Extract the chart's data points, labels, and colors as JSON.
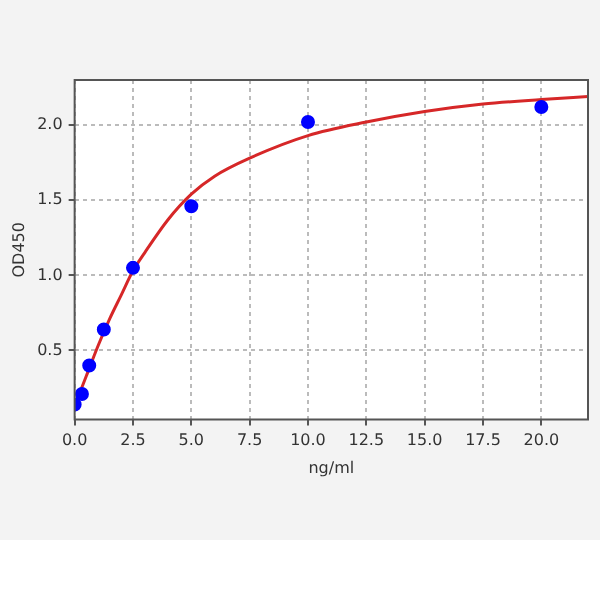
{
  "chart_data": {
    "type": "scatter",
    "xlabel": "ng/ml",
    "ylabel": "OD450",
    "series": [
      {
        "color": "#0000ff",
        "x": [
          0,
          0.3125,
          0.625,
          1.25,
          2.5,
          5,
          10,
          20
        ],
        "values": [
          0.14,
          0.21,
          0.4,
          0.64,
          1.05,
          1.46,
          2.02,
          2.12
        ],
        "marker": "circle"
      },
      {
        "type": "line",
        "color": "#d62728",
        "x": [
          0,
          0.5,
          1,
          1.5,
          2,
          2.5,
          3,
          4,
          5,
          6,
          7.5,
          10,
          12.5,
          15,
          17.5,
          20,
          22
        ],
        "values": [
          0.13,
          0.33,
          0.53,
          0.71,
          0.87,
          1.03,
          1.15,
          1.37,
          1.54,
          1.66,
          1.78,
          1.93,
          2.02,
          2.09,
          2.14,
          2.17,
          2.19
        ],
        "marker": "none"
      }
    ],
    "xlim": [
      0,
      22
    ],
    "xticks": [
      {
        "value": 0,
        "label": "0.0"
      },
      {
        "value": 2.5,
        "label": "2.5"
      },
      {
        "value": 5,
        "label": "5.0"
      },
      {
        "value": 7.5,
        "label": "7.5"
      },
      {
        "value": 10,
        "label": "10.0"
      },
      {
        "value": 12.5,
        "label": "12.5"
      },
      {
        "value": 15,
        "label": "15.0"
      },
      {
        "value": 17.5,
        "label": "17.5"
      },
      {
        "value": 20,
        "label": "20.0"
      }
    ],
    "ylim": [
      0.04,
      2.3
    ],
    "yticks": [
      {
        "value": 0.5,
        "label": "0.5"
      },
      {
        "value": 1,
        "label": "1.0"
      },
      {
        "value": 1.5,
        "label": "1.5"
      },
      {
        "value": 2,
        "label": "2.0"
      }
    ],
    "grid": true
  }
}
